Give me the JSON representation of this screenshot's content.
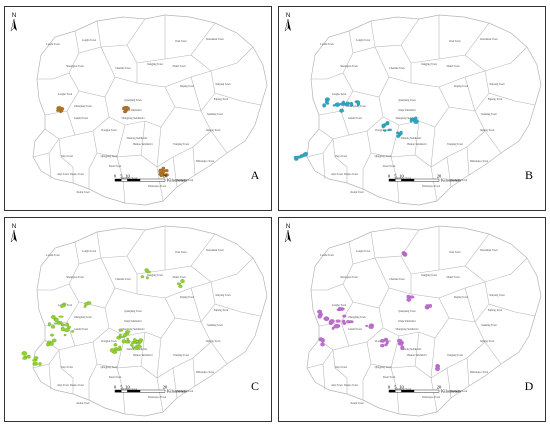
{
  "compass_letter": "N",
  "scale": {
    "ticks": [
      "0",
      "5",
      "10",
      "20"
    ],
    "unit": "Kilometers"
  },
  "colors": {
    "A": "#b8731e",
    "B": "#27a8c8",
    "C": "#8fd42a",
    "D": "#c46ad8",
    "boundary": "#b5b5b5"
  },
  "towns": [
    "Shuangtou Town",
    "Dasi Town",
    "Dazuishan Town",
    "Laoshi Town",
    "Longfu Town",
    "Jiangjing Town",
    "Zhaixi Town",
    "Chenshe Town",
    "Xinyang Town",
    "Daping Town",
    "Longhe Town",
    "Zhangfang Town",
    "Fujiang Town",
    "Ganzhi Town",
    "Quanjiang Town",
    "Xiuju Subdistrict",
    "Sanming Town",
    "Shanglong Subdistrict",
    "Dongpai Town",
    "Jiajiang Town",
    "Nanlong Subdistrict",
    "Baikou Subdistrict",
    "Tianping Town",
    "Qinggang Town",
    "Daya Town",
    "Xiuxi Town",
    "Daqiao Town",
    "Shibanqiao Town",
    "Dingping Town",
    "Zhengzhi Town",
    "Anyi Town",
    "Dixiaoqiao Town",
    "Jiaohu Town"
  ],
  "panels": [
    {
      "letter": "A",
      "town_labels": [
        "Shuangtou Town",
        "Dasi Town",
        "Dazuishan Town",
        "Laoshi Town",
        "Longfu Town",
        "Jiangjing Town",
        "Zhaixi Town",
        "Chenshe Town",
        "Xinyang Town",
        "Daping Town",
        "Longhe Town",
        "Zhangfang Town",
        "Fujiang Town",
        "Ganzhi Town",
        "Quanjiang Town",
        "Xiuju Subdistrict",
        "Sanming Town",
        "Shanglong Subdistrict",
        "Dongpai Town",
        "Jiajiang Town",
        "Nanlong Subdistrict",
        "Baikou Subdistrict",
        "Tianping Town",
        "Qinggang Town",
        "Daya Town",
        "Xiuxi Town",
        "Daqiao Town",
        "Shibanqiao Town",
        "Dingping Town",
        "Zhengzhi Town",
        "Anyi Town",
        "Dixiaoqiao Town",
        "Jiaohu Town"
      ]
    },
    {
      "letter": "B",
      "town_labels": [
        "Shuangtou Town",
        "Dasi Town",
        "Dazuishan Town",
        "Laoshi Town",
        "Longfu Town",
        "Jiangjing Town",
        "Zhaixi Town",
        "Chenshe Town",
        "Xinyang Town",
        "Daping Town",
        "Longhe Town",
        "Zhangfang Town",
        "Fujiang Town",
        "Ganzhi Town",
        "Quanjiang Town",
        "Xiuju Subdistrict",
        "Sanming Town",
        "Shanglong Subdistrict",
        "Dongpai Town",
        "Jiajiang Town",
        "Nanlong Subdistrict",
        "Baikou Subdistrict",
        "Tianping Town",
        "Qinggang Town",
        "Daya Town",
        "Xiuxi Town",
        "Daqiao Town",
        "Shibanqiao Town",
        "Dingping Town",
        "Zhengzhi Town",
        "Anyi Town",
        "Dixiaoqiao Town",
        "Jiaohu Town"
      ]
    },
    {
      "letter": "C",
      "town_labels": [
        "Shuangtou Town",
        "Dasi Town",
        "Dazuishan Town",
        "Laoshi Town",
        "Longfu Town",
        "Jiangjing Town",
        "Zhaixi Town",
        "Chenshe Town",
        "Xinyang Town",
        "Daping Town",
        "Longhe Town",
        "Zhangfang Town",
        "Fujiang Town",
        "Ganzhi Town",
        "Quanjiang Town",
        "Xiuju Subdistrict",
        "Sanming Town",
        "Shanglong Subdistrict",
        "Dongpai Town",
        "Jiajiang Town",
        "Nanlong Subdistrict",
        "Baikou Subdistrict",
        "Tianping Town",
        "Qinggang Town",
        "Daya Town",
        "Xiuxi Town",
        "Daqiao Town",
        "Shibanqiao Town",
        "Dingping Town",
        "Zhengzhi Town",
        "Anyi Town",
        "Dixiaoqiao Town",
        "Jiaohu Town"
      ]
    },
    {
      "letter": "D",
      "town_labels": [
        "Shuangtou Town",
        "Dasi Town",
        "Dazuishan Town",
        "Laoshi Town",
        "Longfu Town",
        "Jiangjing Town",
        "Zhaixi Town",
        "Chenshe Town",
        "Xinyang Town",
        "Daping Town",
        "Longhe Town",
        "Zhangfang Town",
        "Fujiang Town",
        "Ganzhi Town",
        "Quanjiang Town",
        "Xiuju Subdistrict",
        "Sanming Town",
        "Shanglong Subdistrict",
        "Dongpai Town",
        "Jiajiang Town",
        "Nanlong Subdistrict",
        "Baikou Subdistrict",
        "Tianping Town",
        "Qinggang Town",
        "Daya Town",
        "Xiuxi Town",
        "Daqiao Town",
        "Shibanqiao Town",
        "Dingping Town",
        "Zhengzhi Town",
        "Anyi Town",
        "Dixiaoqiao Town",
        "Jiaohu Town"
      ]
    }
  ]
}
